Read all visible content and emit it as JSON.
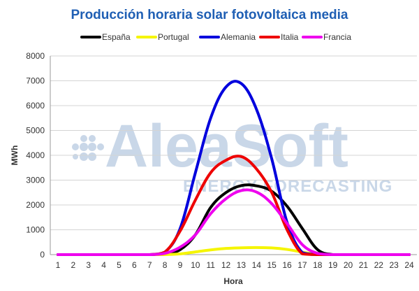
{
  "watermark": {
    "brand": "AleaSoft",
    "tagline": "ENERGY FORECASTING"
  },
  "chart_data": {
    "type": "line",
    "title": "Producción horaria solar fotovoltaica media",
    "xlabel": "Hora",
    "ylabel": "MWh",
    "ylim": [
      0,
      8000
    ],
    "yticks": [
      0,
      1000,
      2000,
      3000,
      4000,
      5000,
      6000,
      7000,
      8000
    ],
    "legend_position": "top",
    "grid": true,
    "categories": [
      "1",
      "2",
      "3",
      "4",
      "5",
      "6",
      "7",
      "8",
      "9",
      "10",
      "11",
      "12",
      "13",
      "14",
      "15",
      "16",
      "17",
      "18",
      "19",
      "20",
      "21",
      "22",
      "23",
      "24"
    ],
    "series": [
      {
        "name": "España",
        "color": "#000000",
        "values": [
          0,
          0,
          0,
          0,
          0,
          0,
          0,
          20,
          200,
          800,
          1900,
          2500,
          2780,
          2770,
          2550,
          1950,
          1050,
          200,
          0,
          0,
          0,
          0,
          0,
          0
        ]
      },
      {
        "name": "Portugal",
        "color": "#f5f500",
        "values": [
          0,
          0,
          0,
          0,
          0,
          0,
          0,
          0,
          30,
          110,
          190,
          250,
          275,
          285,
          270,
          210,
          100,
          10,
          0,
          0,
          0,
          0,
          0,
          0
        ]
      },
      {
        "name": "Alemania",
        "color": "#0000dd",
        "values": [
          0,
          0,
          0,
          0,
          0,
          0,
          0,
          100,
          1050,
          3300,
          5500,
          6750,
          6890,
          5850,
          3850,
          1300,
          80,
          0,
          0,
          0,
          0,
          0,
          0,
          0
        ]
      },
      {
        "name": "Italia",
        "color": "#ee0000",
        "values": [
          0,
          0,
          0,
          0,
          0,
          0,
          0,
          100,
          950,
          2200,
          3300,
          3800,
          3950,
          3450,
          2500,
          1000,
          30,
          0,
          0,
          0,
          0,
          0,
          0,
          0
        ]
      },
      {
        "name": "Francia",
        "color": "#ee00ee",
        "values": [
          0,
          0,
          0,
          0,
          0,
          0,
          0,
          50,
          300,
          800,
          1650,
          2250,
          2580,
          2520,
          2050,
          1250,
          400,
          50,
          0,
          0,
          0,
          0,
          0,
          0
        ]
      }
    ]
  }
}
